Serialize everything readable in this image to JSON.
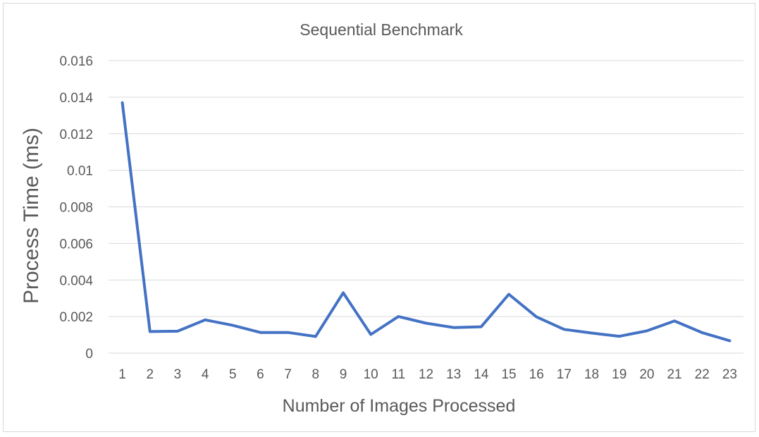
{
  "chart_data": {
    "type": "line",
    "title": "Sequential Benchmark",
    "xlabel": "Number of Images Processed",
    "ylabel": "Process Time (ms)",
    "categories": [
      "1",
      "2",
      "3",
      "4",
      "5",
      "6",
      "7",
      "8",
      "9",
      "10",
      "11",
      "12",
      "13",
      "14",
      "15",
      "16",
      "17",
      "18",
      "19",
      "20",
      "21",
      "22",
      "23"
    ],
    "series": [
      {
        "values": [
          0.0137,
          0.00118,
          0.0012,
          0.00182,
          0.00152,
          0.00113,
          0.00113,
          0.00091,
          0.0033,
          0.00102,
          0.002,
          0.00164,
          0.0014,
          0.00144,
          0.00322,
          0.00198,
          0.0013,
          0.0011,
          0.00092,
          0.00122,
          0.00176,
          0.00112,
          0.00068
        ],
        "color": "#4472C4"
      }
    ],
    "ylim": [
      0,
      0.016
    ],
    "yticks": [
      "0",
      "0.002",
      "0.004",
      "0.006",
      "0.008",
      "0.01",
      "0.012",
      "0.014",
      "0.016"
    ],
    "grid": true,
    "legend": "none"
  }
}
